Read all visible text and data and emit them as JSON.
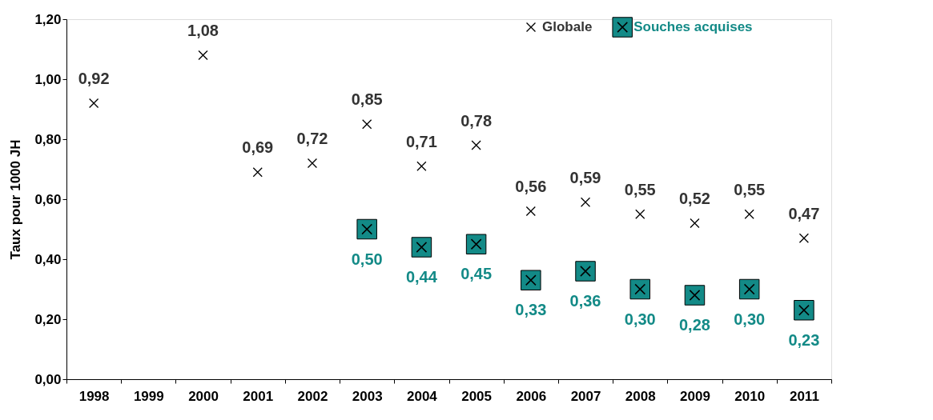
{
  "chart_data": {
    "type": "scatter",
    "ylabel": "Taux pour 1000 JH",
    "categories": [
      "1998",
      "1999",
      "2000",
      "2001",
      "2002",
      "2003",
      "2004",
      "2005",
      "2006",
      "2007",
      "2008",
      "2009",
      "2010",
      "2011"
    ],
    "ylim": [
      0,
      1.2
    ],
    "yticks": [
      {
        "value": 0,
        "label": "0,00"
      },
      {
        "value": 0.2,
        "label": "0,20"
      },
      {
        "value": 0.4,
        "label": "0,40"
      },
      {
        "value": 0.6,
        "label": "0,60"
      },
      {
        "value": 0.8,
        "label": "0,80"
      },
      {
        "value": 1.0,
        "label": "1,00"
      },
      {
        "value": 1.2,
        "label": "1,20"
      }
    ],
    "grid": false,
    "legend": "top right",
    "series": [
      {
        "name": "Globale",
        "color": "#000000",
        "marker": "cross",
        "values": [
          0.92,
          null,
          1.08,
          0.69,
          0.72,
          0.85,
          0.71,
          0.78,
          0.56,
          0.59,
          0.55,
          0.52,
          0.55,
          0.47
        ],
        "value_labels": [
          "0,92",
          null,
          "1,08",
          "0,69",
          "0,72",
          "0,85",
          "0,71",
          "0,78",
          "0,56",
          "0,59",
          "0,55",
          "0,52",
          "0,55",
          "0,47"
        ]
      },
      {
        "name": "Souches acquises",
        "color": "#138a87",
        "marker": "square",
        "values": [
          null,
          null,
          null,
          null,
          null,
          0.5,
          0.44,
          0.45,
          0.33,
          0.36,
          0.3,
          0.28,
          0.3,
          0.23
        ],
        "value_labels": [
          null,
          null,
          null,
          null,
          null,
          "0,50",
          "0,44",
          "0,45",
          "0,33",
          "0,36",
          "0,30",
          "0,28",
          "0,30",
          "0,23"
        ]
      }
    ]
  }
}
